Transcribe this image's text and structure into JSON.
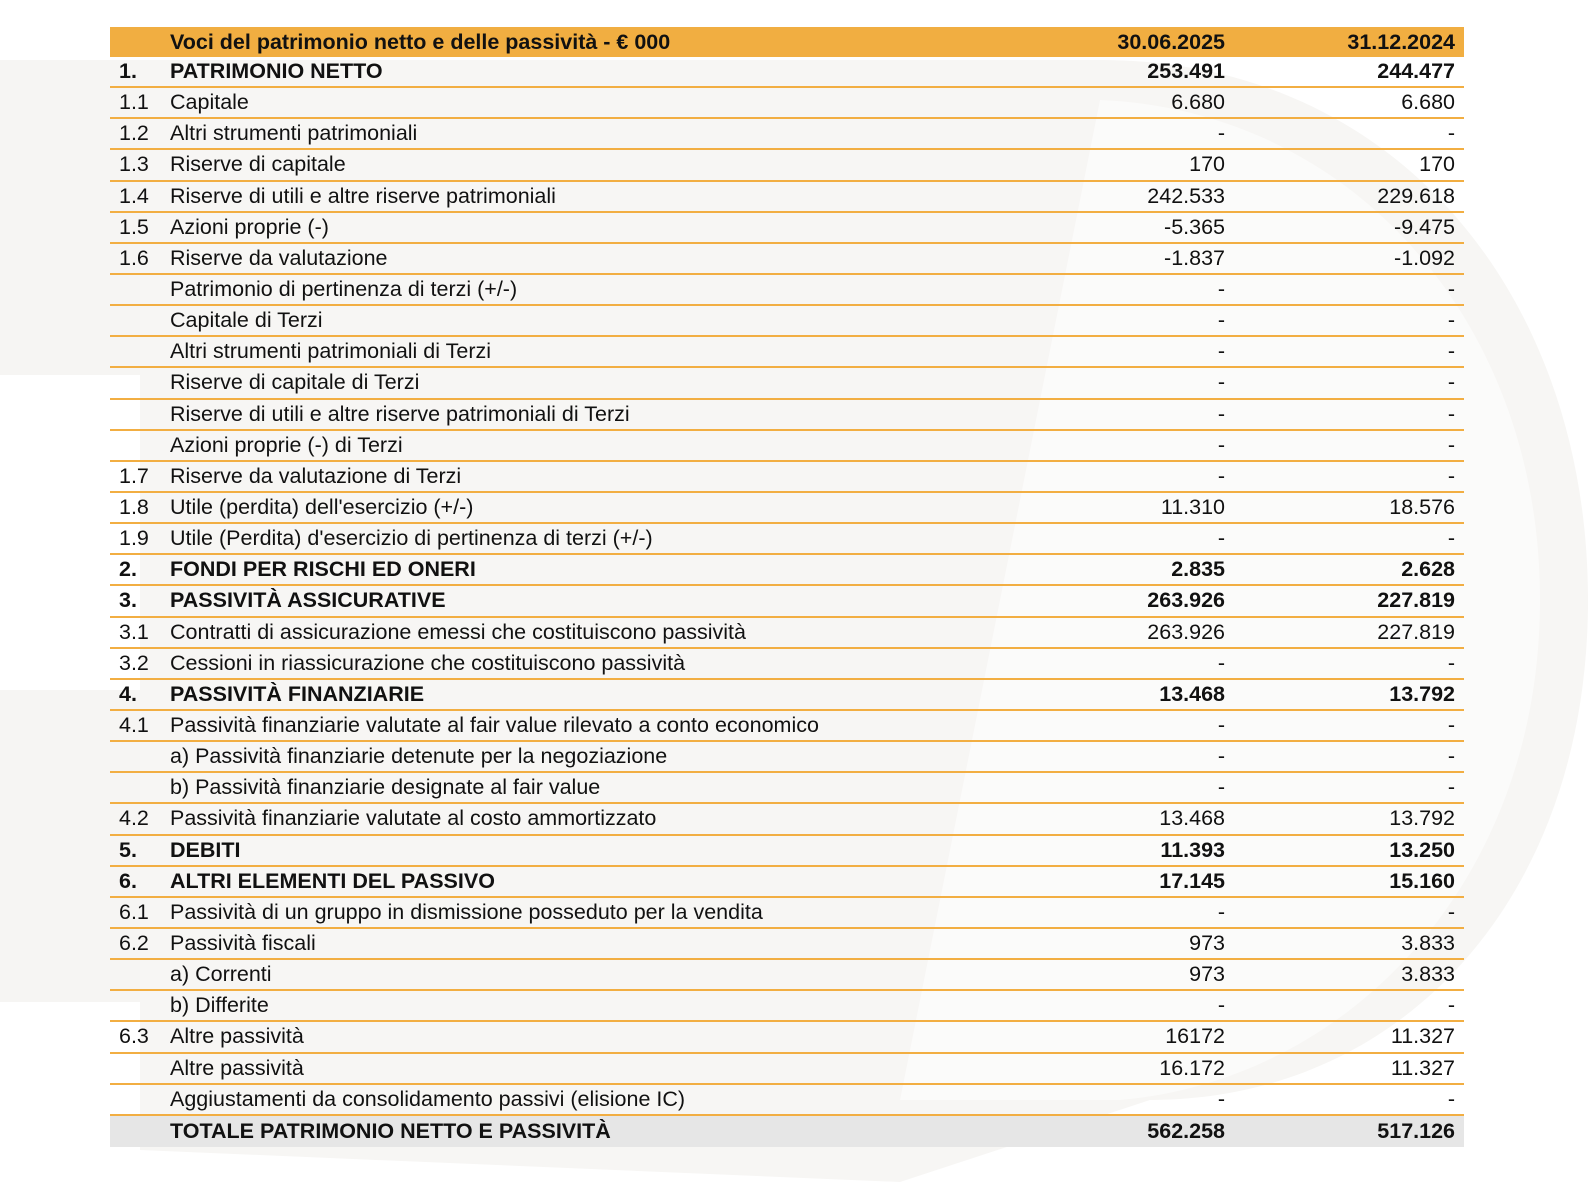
{
  "header": {
    "label": "Voci del patrimonio netto e delle passività - € 000",
    "col1": "30.06.2025",
    "col2": "31.12.2024"
  },
  "colors": {
    "accent": "#f1ae41",
    "total_bg": "#e6e6e6"
  },
  "rows": [
    {
      "num": "1.",
      "label": "PATRIMONIO NETTO",
      "v1": "253.491",
      "v2": "244.477",
      "style": "bold"
    },
    {
      "num": "1.1",
      "label": "Capitale",
      "v1": "6.680",
      "v2": "6.680"
    },
    {
      "num": "1.2",
      "label": "Altri strumenti patrimoniali",
      "v1": "-",
      "v2": "-"
    },
    {
      "num": "1.3",
      "label": "Riserve di capitale",
      "v1": "170",
      "v2": "170"
    },
    {
      "num": "1.4",
      "label": "Riserve di utili e altre riserve patrimoniali",
      "v1": "242.533",
      "v2": "229.618"
    },
    {
      "num": "1.5",
      "label": "Azioni proprie (-)",
      "v1": "-5.365",
      "v2": "-9.475"
    },
    {
      "num": "1.6",
      "label": "Riserve da valutazione",
      "v1": "-1.837",
      "v2": "-1.092"
    },
    {
      "num": "",
      "label": "Patrimonio di pertinenza di terzi (+/-)",
      "v1": "-",
      "v2": "-"
    },
    {
      "num": "",
      "label": "Capitale di Terzi",
      "v1": "-",
      "v2": "-"
    },
    {
      "num": "",
      "label": "Altri strumenti patrimoniali di Terzi",
      "v1": "-",
      "v2": "-"
    },
    {
      "num": "",
      "label": "Riserve di capitale di Terzi",
      "v1": "-",
      "v2": "-"
    },
    {
      "num": "",
      "label": "Riserve di utili e altre riserve patrimoniali di Terzi",
      "v1": "-",
      "v2": "-"
    },
    {
      "num": "",
      "label": "Azioni proprie (-) di Terzi",
      "v1": "-",
      "v2": "-"
    },
    {
      "num": "1.7",
      "label": "Riserve da valutazione di Terzi",
      "v1": "-",
      "v2": "-"
    },
    {
      "num": "1.8",
      "label": "Utile (perdita) dell'esercizio (+/-)",
      "v1": "11.310",
      "v2": "18.576"
    },
    {
      "num": "1.9",
      "label": "Utile (Perdita) d'esercizio di pertinenza di terzi (+/-)",
      "v1": "-",
      "v2": "-"
    },
    {
      "num": "2.",
      "label": "FONDI PER RISCHI ED ONERI",
      "v1": "2.835",
      "v2": "2.628",
      "style": "bold"
    },
    {
      "num": "3.",
      "label": "PASSIVITÀ ASSICURATIVE",
      "v1": "263.926",
      "v2": "227.819",
      "style": "bold"
    },
    {
      "num": "3.1",
      "label": "Contratti di assicurazione emessi che costituiscono passività",
      "v1": "263.926",
      "v2": "227.819"
    },
    {
      "num": "3.2",
      "label": "Cessioni in riassicurazione che costituiscono passività",
      "v1": "-",
      "v2": "-"
    },
    {
      "num": "4.",
      "label": "PASSIVITÀ FINANZIARIE",
      "v1": "13.468",
      "v2": "13.792",
      "style": "bold"
    },
    {
      "num": "4.1",
      "label": "Passività finanziarie valutate al fair value rilevato a conto economico",
      "v1": "-",
      "v2": "-"
    },
    {
      "num": "",
      "label": "a) Passività finanziarie detenute per la negoziazione",
      "v1": "-",
      "v2": "-"
    },
    {
      "num": "",
      "label": "b) Passività finanziarie designate al fair value",
      "v1": "-",
      "v2": "-"
    },
    {
      "num": "4.2",
      "label": "Passività finanziarie valutate al costo ammortizzato",
      "v1": "13.468",
      "v2": "13.792"
    },
    {
      "num": "5.",
      "label": "DEBITI",
      "v1": "11.393",
      "v2": "13.250",
      "style": "bold"
    },
    {
      "num": "6.",
      "label": "ALTRI ELEMENTI DEL PASSIVO",
      "v1": "17.145",
      "v2": "15.160",
      "style": "bold"
    },
    {
      "num": "6.1",
      "label": "Passività di un gruppo in dismissione posseduto per la vendita",
      "v1": "-",
      "v2": "-"
    },
    {
      "num": "6.2",
      "label": "Passività fiscali",
      "v1": "973",
      "v2": "3.833"
    },
    {
      "num": "",
      "label": "a) Correnti",
      "v1": "973",
      "v2": "3.833"
    },
    {
      "num": "",
      "label": "b) Differite",
      "v1": "-",
      "v2": "-"
    },
    {
      "num": "6.3",
      "label": "Altre passività",
      "v1": "16172",
      "v2": "11.327"
    },
    {
      "num": "",
      "label": "Altre passività",
      "v1": "16.172",
      "v2": "11.327"
    },
    {
      "num": "",
      "label": "Aggiustamenti da consolidamento passivi (elisione IC)",
      "v1": "-",
      "v2": "-"
    },
    {
      "num": "",
      "label": "TOTALE PATRIMONIO NETTO E PASSIVITÀ",
      "v1": "562.258",
      "v2": "517.126",
      "style": "total"
    }
  ]
}
